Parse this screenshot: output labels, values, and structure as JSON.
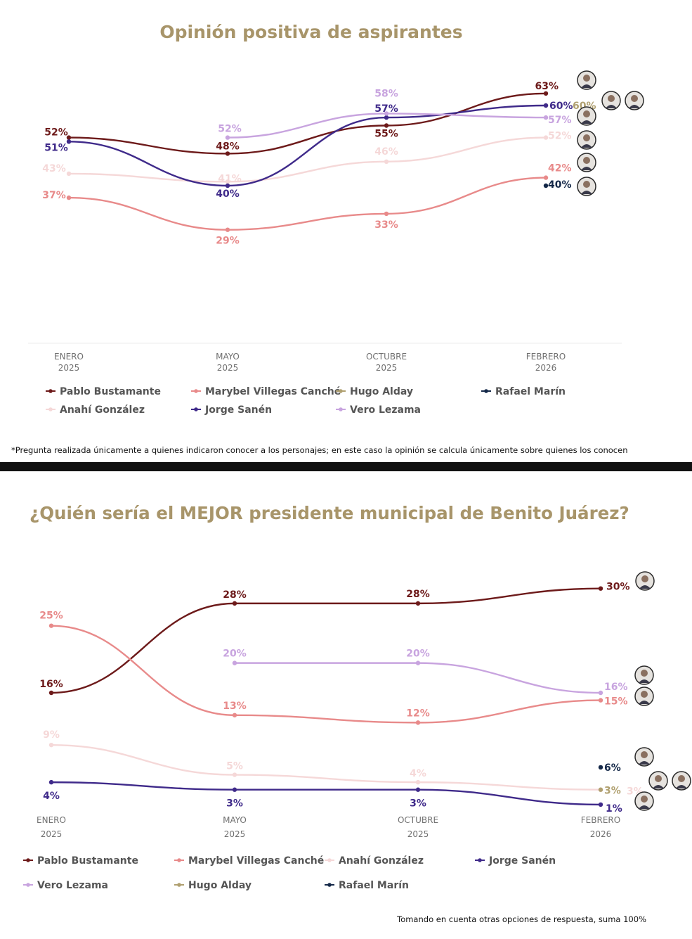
{
  "colors": {
    "Pablo Bustamante": "#6d1a1a",
    "Marybel Villegas Canché": "#e88a8a",
    "Hugo Alday": "#b0a070",
    "Rafael Marín": "#142848",
    "Anahí González": "#f5d8d8",
    "Jorge Sanén": "#3f2a8a",
    "Vero Lezama": "#c8a4df",
    "title": "#a8956a"
  },
  "chart_data": [
    {
      "type": "line",
      "title": "Opinión positiva de aspirantes",
      "categories": [
        [
          "ENERO",
          "2025"
        ],
        [
          "MAYO",
          "2025"
        ],
        [
          "OCTUBRE",
          "2025"
        ],
        [
          "FEBRERO",
          "2026"
        ]
      ],
      "ylim": [
        25,
        65
      ],
      "series": [
        {
          "name": "Pablo Bustamante",
          "values": [
            52,
            48,
            55,
            63
          ],
          "labels": [
            "52%",
            "48%",
            "55%",
            "63%"
          ]
        },
        {
          "name": "Marybel Villegas Canché",
          "values": [
            37,
            29,
            33,
            42
          ],
          "labels": [
            "37%",
            "29%",
            "33%",
            "42%"
          ]
        },
        {
          "name": "Hugo Alday",
          "values": [
            null,
            null,
            null,
            60
          ],
          "labels": [
            "",
            "",
            "",
            "60%"
          ]
        },
        {
          "name": "Rafael Marín",
          "values": [
            null,
            null,
            null,
            40
          ],
          "labels": [
            "",
            "",
            "",
            "40%"
          ]
        },
        {
          "name": "Anahí González",
          "values": [
            43,
            41,
            46,
            52
          ],
          "labels": [
            "43%",
            "41%",
            "46%",
            "52%"
          ]
        },
        {
          "name": "Jorge Sanén",
          "values": [
            51,
            40,
            57,
            60
          ],
          "labels": [
            "51%",
            "40%",
            "57%",
            "60%"
          ]
        },
        {
          "name": "Vero Lezama",
          "values": [
            null,
            52,
            58,
            57
          ],
          "labels": [
            "",
            "52%",
            "58%",
            "57%"
          ]
        }
      ],
      "legend": [
        "Pablo Bustamante",
        "Marybel Villegas Canché",
        "Hugo Alday",
        "Rafael Marín",
        "Anahí González",
        "Jorge Sanén",
        "Vero Lezama"
      ],
      "footnote": "*Pregunta realizada únicamente a quienes indicaron conocer a los personajes; en este caso la opinión se calcula únicamente sobre quienes los conocen"
    },
    {
      "type": "line",
      "title": "¿Quién sería el MEJOR presidente municipal de Benito Juárez?",
      "categories": [
        [
          "ENERO",
          "2025"
        ],
        [
          "MAYO",
          "2025"
        ],
        [
          "OCTUBRE",
          "2025"
        ],
        [
          "FEBRERO",
          "2026"
        ]
      ],
      "ylim": [
        0,
        32
      ],
      "series": [
        {
          "name": "Pablo Bustamante",
          "values": [
            16,
            28,
            28,
            30
          ],
          "labels": [
            "16%",
            "28%",
            "28%",
            "30%"
          ]
        },
        {
          "name": "Marybel Villegas Canché",
          "values": [
            25,
            13,
            12,
            15
          ],
          "labels": [
            "25%",
            "13%",
            "12%",
            "15%"
          ]
        },
        {
          "name": "Anahí González",
          "values": [
            9,
            5,
            4,
            3
          ],
          "labels": [
            "9%",
            "5%",
            "4%",
            "3%"
          ]
        },
        {
          "name": "Jorge Sanén",
          "values": [
            4,
            3,
            3,
            1
          ],
          "labels": [
            "4%",
            "3%",
            "3%",
            "1%"
          ]
        },
        {
          "name": "Vero Lezama",
          "values": [
            null,
            20,
            20,
            16
          ],
          "labels": [
            "",
            "20%",
            "20%",
            "16%"
          ]
        },
        {
          "name": "Hugo Alday",
          "values": [
            null,
            null,
            null,
            3
          ],
          "labels": [
            "",
            "",
            "",
            "3%"
          ]
        },
        {
          "name": "Rafael Marín",
          "values": [
            null,
            null,
            null,
            6
          ],
          "labels": [
            "",
            "",
            "",
            "6%"
          ]
        }
      ],
      "legend": [
        "Pablo Bustamante",
        "Marybel Villegas Canché",
        "Anahí González",
        "Jorge Sanén",
        "Vero Lezama",
        "Hugo Alday",
        "Rafael Marín"
      ],
      "footnote": "Tomando en cuenta otras opciones de respuesta, suma 100%"
    }
  ]
}
